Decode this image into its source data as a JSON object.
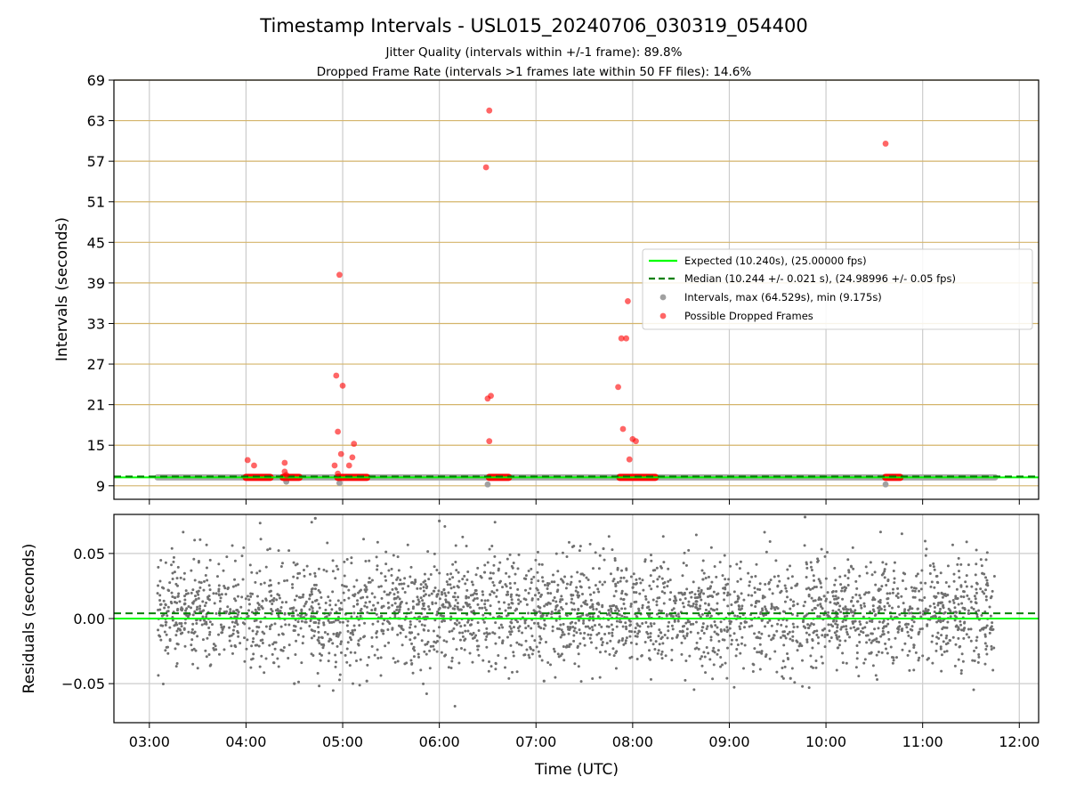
{
  "chart_data": [
    {
      "type": "scatter",
      "panel": "intervals",
      "title": "Timestamp Intervals - USL015_20240706_030319_054400",
      "subtitle_1": "Jitter Quality (intervals within +/-1 frame): 89.8%",
      "subtitle_2": "Dropped Frame Rate (intervals >1 frames late within 50 FF files): 14.6%",
      "ylabel": "Intervals (seconds)",
      "xlim": [
        "02:38",
        "12:12"
      ],
      "ylim": [
        7.0,
        69.0
      ],
      "y_ticks": [
        "9",
        "15",
        "21",
        "27",
        "33",
        "39",
        "45",
        "51",
        "57",
        "63",
        "69"
      ],
      "grid": true,
      "legend_position": "center-right",
      "legend": [
        {
          "label": "Expected (10.240s), (25.00000 fps)",
          "kind": "solid-line",
          "color": "#00ff00"
        },
        {
          "label": "Median (10.244 +/- 0.021 s), (24.98996 +/- 0.05 fps)",
          "kind": "dashed-line",
          "color": "#007f00"
        },
        {
          "label": "Intervals, max (64.529s), min (9.175s)",
          "kind": "marker",
          "color": "#a0a0a0"
        },
        {
          "label": "Possible Dropped Frames",
          "kind": "marker",
          "color": "#ff0000"
        }
      ],
      "expected_interval": 10.24,
      "median_interval": 10.244,
      "intervals_span": {
        "start": "03:05",
        "end": "11:45",
        "value": 10.24
      },
      "intervals_low_points": [
        {
          "x": "04:25",
          "y": 9.6
        },
        {
          "x": "04:58",
          "y": 9.4
        },
        {
          "x": "06:30",
          "y": 9.2
        },
        {
          "x": "10:37",
          "y": 9.2
        }
      ],
      "dropped_frame_clusters": [
        {
          "start": "04:00",
          "end": "04:15",
          "y": 10.24
        },
        {
          "start": "04:23",
          "end": "04:33",
          "y": 10.24
        },
        {
          "start": "04:57",
          "end": "05:15",
          "y": 10.24
        },
        {
          "start": "06:31",
          "end": "06:43",
          "y": 10.24
        },
        {
          "start": "07:52",
          "end": "08:14",
          "y": 10.24
        },
        {
          "start": "10:37",
          "end": "10:46",
          "y": 10.24
        }
      ],
      "dropped_frames": [
        {
          "x": "04:01",
          "y": 12.8
        },
        {
          "x": "04:05",
          "y": 12.0
        },
        {
          "x": "04:24",
          "y": 12.4
        },
        {
          "x": "04:24",
          "y": 11.1
        },
        {
          "x": "04:25",
          "y": 10.6
        },
        {
          "x": "04:55",
          "y": 12.0
        },
        {
          "x": "04:56",
          "y": 25.3
        },
        {
          "x": "04:57",
          "y": 17.0
        },
        {
          "x": "04:57",
          "y": 10.8
        },
        {
          "x": "04:58",
          "y": 40.2
        },
        {
          "x": "04:59",
          "y": 13.7
        },
        {
          "x": "05:00",
          "y": 23.8
        },
        {
          "x": "05:04",
          "y": 12.0
        },
        {
          "x": "05:06",
          "y": 13.2
        },
        {
          "x": "05:07",
          "y": 15.2
        },
        {
          "x": "06:29",
          "y": 56.1
        },
        {
          "x": "06:30",
          "y": 21.9
        },
        {
          "x": "06:31",
          "y": 64.5
        },
        {
          "x": "06:31",
          "y": 15.6
        },
        {
          "x": "06:32",
          "y": 22.3
        },
        {
          "x": "07:51",
          "y": 23.6
        },
        {
          "x": "07:53",
          "y": 30.8
        },
        {
          "x": "07:54",
          "y": 17.4
        },
        {
          "x": "07:56",
          "y": 30.8
        },
        {
          "x": "07:57",
          "y": 36.3
        },
        {
          "x": "07:58",
          "y": 12.9
        },
        {
          "x": "08:00",
          "y": 15.9
        },
        {
          "x": "08:02",
          "y": 15.6
        },
        {
          "x": "10:37",
          "y": 59.6
        }
      ]
    },
    {
      "type": "scatter",
      "panel": "residuals",
      "ylabel": "Residuals (seconds)",
      "xlabel": "Time (UTC)",
      "xlim": [
        "02:38",
        "12:12"
      ],
      "ylim": [
        -0.08,
        0.08
      ],
      "y_ticks": [
        "−0.05",
        "0.00",
        "0.05"
      ],
      "x_ticks": [
        "03:00",
        "04:00",
        "05:00",
        "06:00",
        "07:00",
        "08:00",
        "09:00",
        "10:00",
        "11:00",
        "12:00"
      ],
      "grid": true,
      "expected_residual": 0.0,
      "median_residual": 0.004,
      "residuals_span": {
        "start": "03:05",
        "end": "11:45",
        "count": 3000,
        "mean": 0.004,
        "std": 0.021
      },
      "residual_notable_points": [
        {
          "x": "04:43",
          "y": 0.077
        },
        {
          "x": "06:00",
          "y": 0.075
        },
        {
          "x": "09:47",
          "y": 0.078
        },
        {
          "x": "04:30",
          "y": -0.05
        },
        {
          "x": "05:15",
          "y": -0.048
        },
        {
          "x": "07:05",
          "y": -0.048
        },
        {
          "x": "09:38",
          "y": -0.046
        }
      ]
    }
  ],
  "colors": {
    "expected": "#00ff00",
    "median": "#007f00",
    "intervals": "#a0a0a0",
    "dropped": "#ff0000",
    "residuals": "#707070",
    "interval_grid": "#d4b46a",
    "grid": "#cccccc"
  }
}
